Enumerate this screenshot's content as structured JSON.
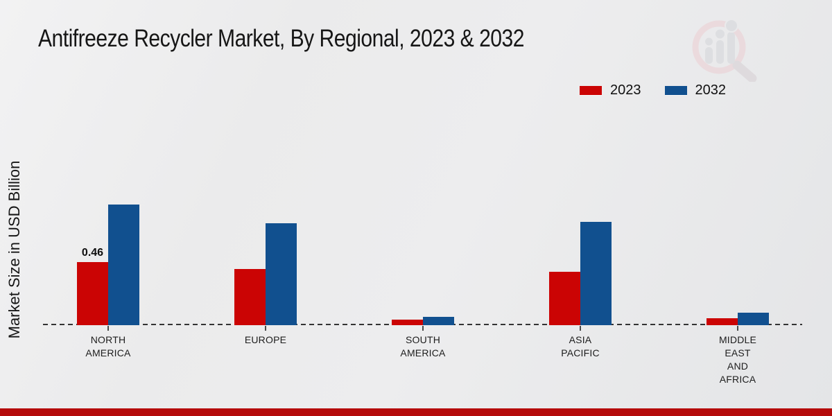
{
  "page": {
    "watermark_icon": "magnifier-bar-chart-logo"
  },
  "chart_data": {
    "type": "bar",
    "title": "Antifreeze Recycler Market, By Regional, 2023 & 2032",
    "ylabel": "Market Size in USD Billion",
    "xlabel": "",
    "units": "USD Billion",
    "categories": [
      "NORTH AMERICA",
      "EUROPE",
      "SOUTH AMERICA",
      "ASIA PACIFIC",
      "MIDDLE EAST AND AFRICA"
    ],
    "category_label_lines": [
      [
        "NORTH",
        "AMERICA"
      ],
      [
        "EUROPE"
      ],
      [
        "SOUTH",
        "AMERICA"
      ],
      [
        "ASIA",
        "PACIFIC"
      ],
      [
        "MIDDLE",
        "EAST",
        "AND",
        "AFRICA"
      ]
    ],
    "series": [
      {
        "name": "2023",
        "color": "#cb0404",
        "values": [
          0.46,
          0.41,
          0.04,
          0.39,
          0.05
        ]
      },
      {
        "name": "2032",
        "color": "#11508f",
        "values": [
          0.88,
          0.74,
          0.06,
          0.75,
          0.09
        ]
      }
    ],
    "data_labels": [
      {
        "series_index": 0,
        "category_index": 0,
        "text": "0.46"
      }
    ],
    "ylim": [
      0,
      1.0
    ],
    "grid": false,
    "axis_baseline_style": "dashed",
    "legend_position": "top-right"
  },
  "footer": {
    "bar_color": "#b50b0b"
  }
}
